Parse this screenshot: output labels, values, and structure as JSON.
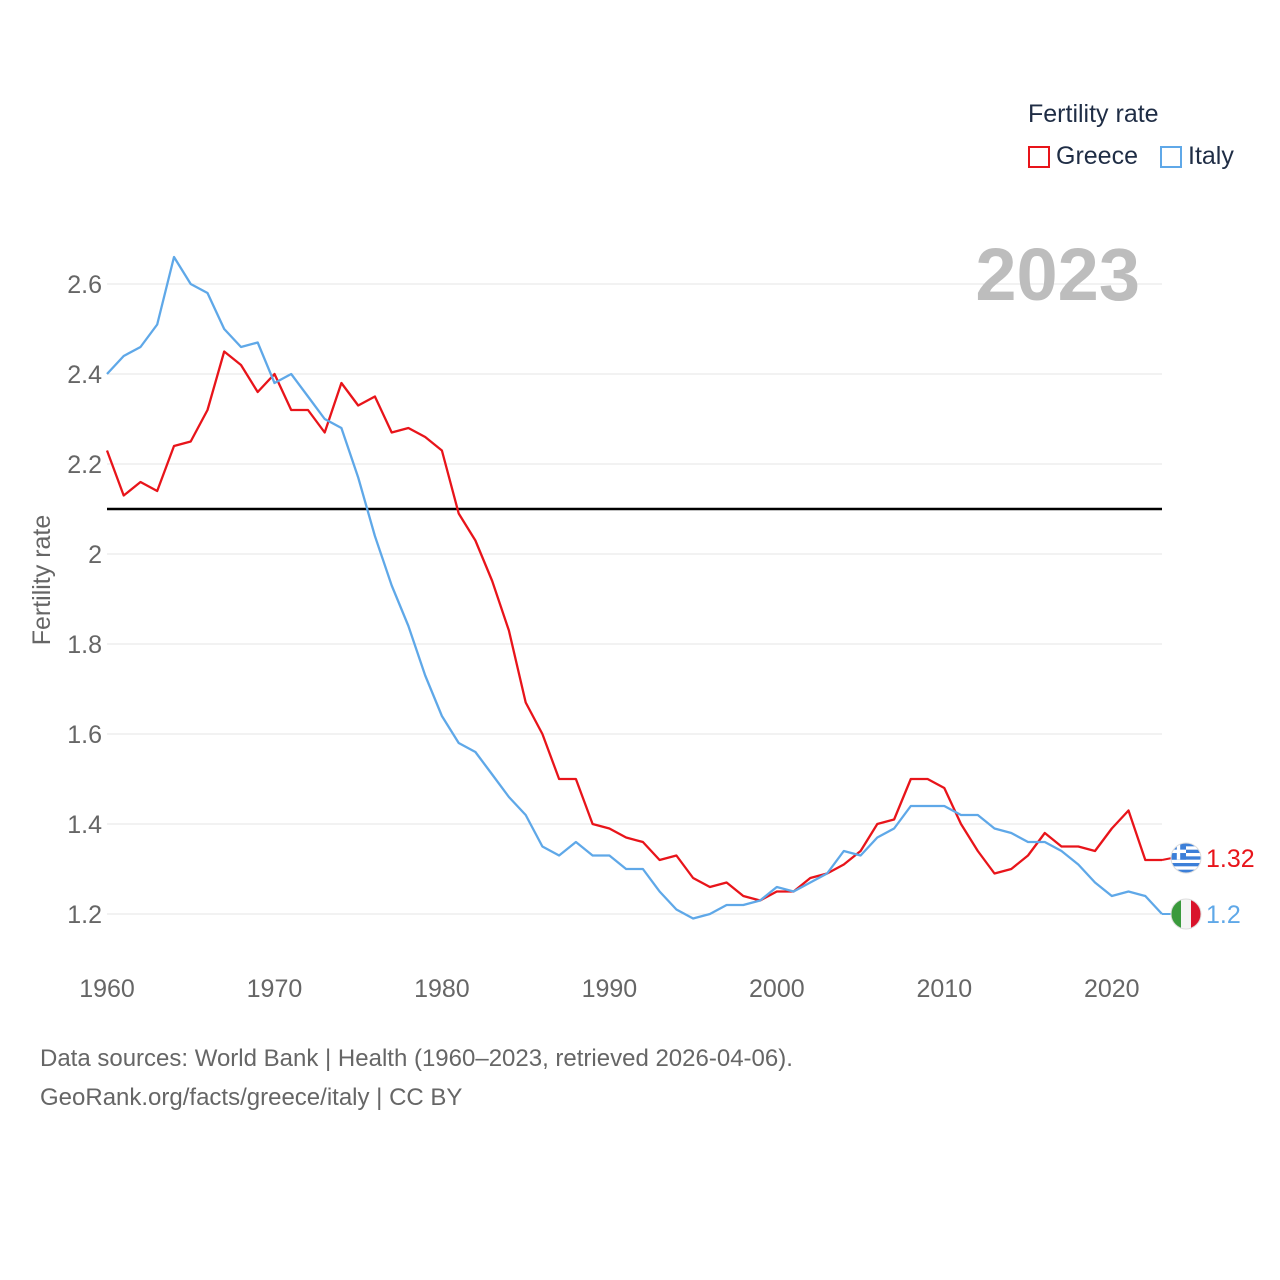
{
  "legend": {
    "title": "Fertility rate",
    "items": [
      {
        "label": "Greece",
        "color": "#e8141a"
      },
      {
        "label": "Italy",
        "color": "#5fa8e8"
      }
    ]
  },
  "year_label": "2023",
  "footer": {
    "line1": "Data sources: World Bank | Health (1960–2023, retrieved 2026-04-06).",
    "line2": "GeoRank.org/facts/greece/italy | CC BY"
  },
  "chart_data": {
    "type": "line",
    "title": "",
    "xlabel": "",
    "ylabel": "Fertility rate",
    "xlim": [
      1960,
      2023
    ],
    "ylim": [
      1.12,
      2.72
    ],
    "x_ticks": [
      1960,
      1970,
      1980,
      1990,
      2000,
      2010,
      2020
    ],
    "y_ticks": [
      1.2,
      1.4,
      1.6,
      1.8,
      2,
      2.2,
      2.4,
      2.6
    ],
    "y_tick_labels": [
      "1.2",
      "1.4",
      "1.6",
      "1.8",
      "2",
      "2.2",
      "2.4",
      "2.6"
    ],
    "reference_line": {
      "value": 2.1,
      "color": "#000000"
    },
    "x": [
      1960,
      1961,
      1962,
      1963,
      1964,
      1965,
      1966,
      1967,
      1968,
      1969,
      1970,
      1971,
      1972,
      1973,
      1974,
      1975,
      1976,
      1977,
      1978,
      1979,
      1980,
      1981,
      1982,
      1983,
      1984,
      1985,
      1986,
      1987,
      1988,
      1989,
      1990,
      1991,
      1992,
      1993,
      1994,
      1995,
      1996,
      1997,
      1998,
      1999,
      2000,
      2001,
      2002,
      2003,
      2004,
      2005,
      2006,
      2007,
      2008,
      2009,
      2010,
      2011,
      2012,
      2013,
      2014,
      2015,
      2016,
      2017,
      2018,
      2019,
      2020,
      2021,
      2022,
      2023
    ],
    "series": [
      {
        "name": "Greece",
        "color": "#e8141a",
        "end_label": "1.32",
        "flag_icon": "greece-flag-icon",
        "values": [
          2.23,
          2.13,
          2.16,
          2.14,
          2.24,
          2.25,
          2.32,
          2.45,
          2.42,
          2.36,
          2.4,
          2.32,
          2.32,
          2.27,
          2.38,
          2.33,
          2.35,
          2.27,
          2.28,
          2.26,
          2.23,
          2.09,
          2.03,
          1.94,
          1.83,
          1.67,
          1.6,
          1.5,
          1.5,
          1.4,
          1.39,
          1.37,
          1.36,
          1.32,
          1.33,
          1.28,
          1.26,
          1.27,
          1.24,
          1.23,
          1.25,
          1.25,
          1.28,
          1.29,
          1.31,
          1.34,
          1.4,
          1.41,
          1.5,
          1.5,
          1.48,
          1.4,
          1.34,
          1.29,
          1.3,
          1.33,
          1.38,
          1.35,
          1.35,
          1.34,
          1.39,
          1.43,
          1.32,
          1.32
        ]
      },
      {
        "name": "Italy",
        "color": "#5fa8e8",
        "end_label": "1.2",
        "flag_icon": "italy-flag-icon",
        "values": [
          2.4,
          2.44,
          2.46,
          2.51,
          2.66,
          2.6,
          2.58,
          2.5,
          2.46,
          2.47,
          2.38,
          2.4,
          2.35,
          2.3,
          2.28,
          2.17,
          2.04,
          1.93,
          1.84,
          1.73,
          1.64,
          1.58,
          1.56,
          1.51,
          1.46,
          1.42,
          1.35,
          1.33,
          1.36,
          1.33,
          1.33,
          1.3,
          1.3,
          1.25,
          1.21,
          1.19,
          1.2,
          1.22,
          1.22,
          1.23,
          1.26,
          1.25,
          1.27,
          1.29,
          1.34,
          1.33,
          1.37,
          1.39,
          1.44,
          1.44,
          1.44,
          1.42,
          1.42,
          1.39,
          1.38,
          1.36,
          1.36,
          1.34,
          1.31,
          1.27,
          1.24,
          1.25,
          1.24,
          1.2
        ]
      }
    ]
  }
}
